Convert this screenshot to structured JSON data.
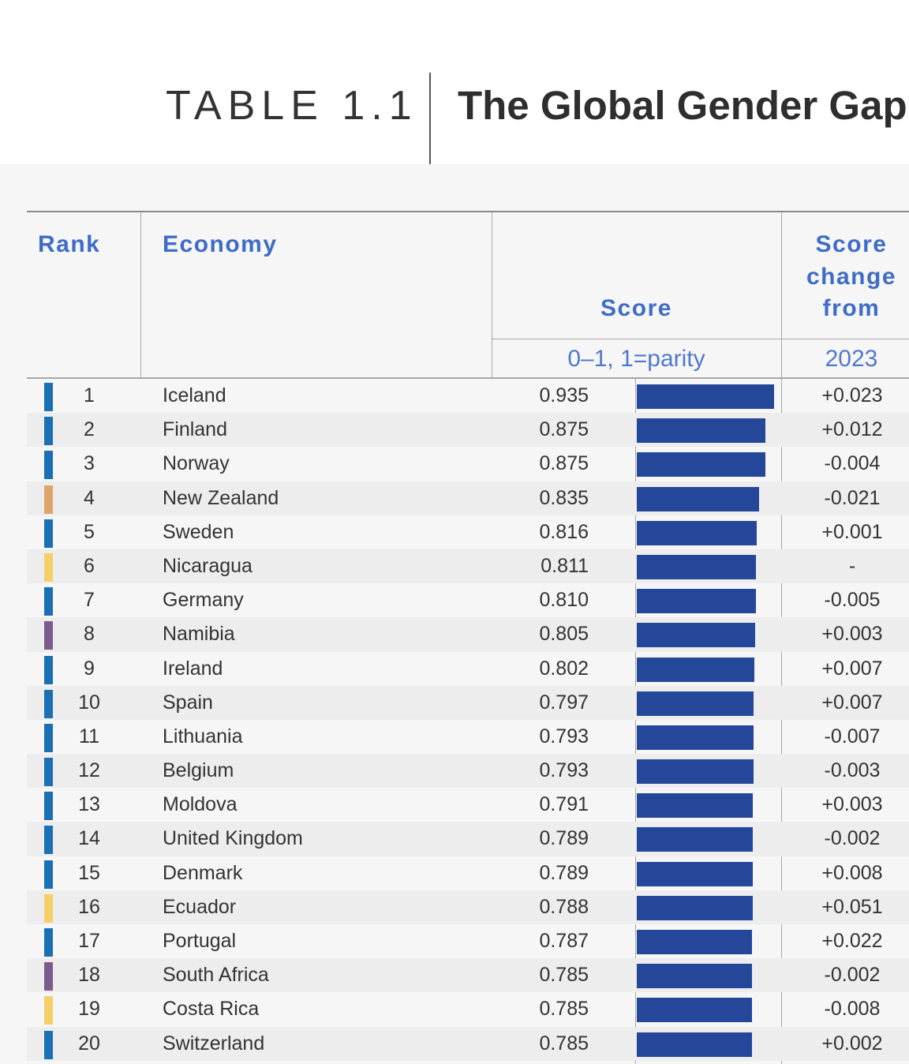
{
  "header": {
    "table_label": "TABLE 1.1",
    "title": "The Global Gender Gap I"
  },
  "columns": {
    "rank": "Rank",
    "economy": "Economy",
    "score": "Score",
    "score_unit": "0–1, 1=parity",
    "change_line1": "Score",
    "change_line2": "change",
    "change_line3": "from",
    "change_year": "2023"
  },
  "colors": {
    "header_blue": "#3e6cc7",
    "bar_blue": "#25479a",
    "region_blue": "#1a6fb5",
    "region_orange": "#e0a56a",
    "region_yellow": "#f7cf6a",
    "region_purple": "#7d5a8e"
  },
  "rows": [
    {
      "rank": "1",
      "economy": "Iceland",
      "score": "0.935",
      "value": 0.935,
      "change": "+0.023",
      "region_color": "#1a6fb5"
    },
    {
      "rank": "2",
      "economy": "Finland",
      "score": "0.875",
      "value": 0.875,
      "change": "+0.012",
      "region_color": "#1a6fb5"
    },
    {
      "rank": "3",
      "economy": "Norway",
      "score": "0.875",
      "value": 0.875,
      "change": "-0.004",
      "region_color": "#1a6fb5"
    },
    {
      "rank": "4",
      "economy": "New Zealand",
      "score": "0.835",
      "value": 0.835,
      "change": "-0.021",
      "region_color": "#e0a56a"
    },
    {
      "rank": "5",
      "economy": "Sweden",
      "score": "0.816",
      "value": 0.816,
      "change": "+0.001",
      "region_color": "#1a6fb5"
    },
    {
      "rank": "6",
      "economy": "Nicaragua",
      "score": "0.811",
      "value": 0.811,
      "change": "-",
      "region_color": "#f7cf6a"
    },
    {
      "rank": "7",
      "economy": "Germany",
      "score": "0.810",
      "value": 0.81,
      "change": "-0.005",
      "region_color": "#1a6fb5"
    },
    {
      "rank": "8",
      "economy": "Namibia",
      "score": "0.805",
      "value": 0.805,
      "change": "+0.003",
      "region_color": "#7d5a8e"
    },
    {
      "rank": "9",
      "economy": "Ireland",
      "score": "0.802",
      "value": 0.802,
      "change": "+0.007",
      "region_color": "#1a6fb5"
    },
    {
      "rank": "10",
      "economy": "Spain",
      "score": "0.797",
      "value": 0.797,
      "change": "+0.007",
      "region_color": "#1a6fb5"
    },
    {
      "rank": "11",
      "economy": "Lithuania",
      "score": "0.793",
      "value": 0.793,
      "change": "-0.007",
      "region_color": "#1a6fb5"
    },
    {
      "rank": "12",
      "economy": "Belgium",
      "score": "0.793",
      "value": 0.793,
      "change": "-0.003",
      "region_color": "#1a6fb5"
    },
    {
      "rank": "13",
      "economy": "Moldova",
      "score": "0.791",
      "value": 0.791,
      "change": "+0.003",
      "region_color": "#1a6fb5"
    },
    {
      "rank": "14",
      "economy": "United Kingdom",
      "score": "0.789",
      "value": 0.789,
      "change": "-0.002",
      "region_color": "#1a6fb5"
    },
    {
      "rank": "15",
      "economy": "Denmark",
      "score": "0.789",
      "value": 0.789,
      "change": "+0.008",
      "region_color": "#1a6fb5"
    },
    {
      "rank": "16",
      "economy": "Ecuador",
      "score": "0.788",
      "value": 0.788,
      "change": "+0.051",
      "region_color": "#f7cf6a"
    },
    {
      "rank": "17",
      "economy": "Portugal",
      "score": "0.787",
      "value": 0.787,
      "change": "+0.022",
      "region_color": "#1a6fb5"
    },
    {
      "rank": "18",
      "economy": "South Africa",
      "score": "0.785",
      "value": 0.785,
      "change": "-0.002",
      "region_color": "#7d5a8e"
    },
    {
      "rank": "19",
      "economy": "Costa Rica",
      "score": "0.785",
      "value": 0.785,
      "change": "-0.008",
      "region_color": "#f7cf6a"
    },
    {
      "rank": "20",
      "economy": "Switzerland",
      "score": "0.785",
      "value": 0.785,
      "change": "+0.002",
      "region_color": "#1a6fb5"
    }
  ]
}
